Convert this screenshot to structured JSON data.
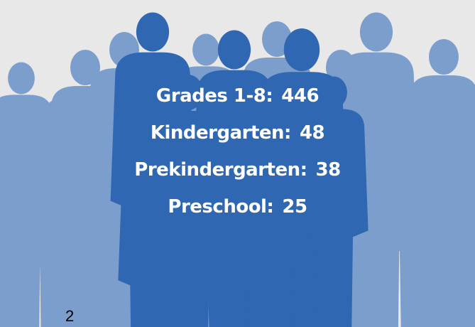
{
  "slide": {
    "lines": [
      {
        "label": "Grades 1-8:",
        "value": 446
      },
      {
        "label": "Kindergarten:",
        "value": 48
      },
      {
        "label": "Prekindergarten:",
        "value": 38
      },
      {
        "label": "Preschool:",
        "value": 25
      }
    ],
    "page_number": "2"
  }
}
